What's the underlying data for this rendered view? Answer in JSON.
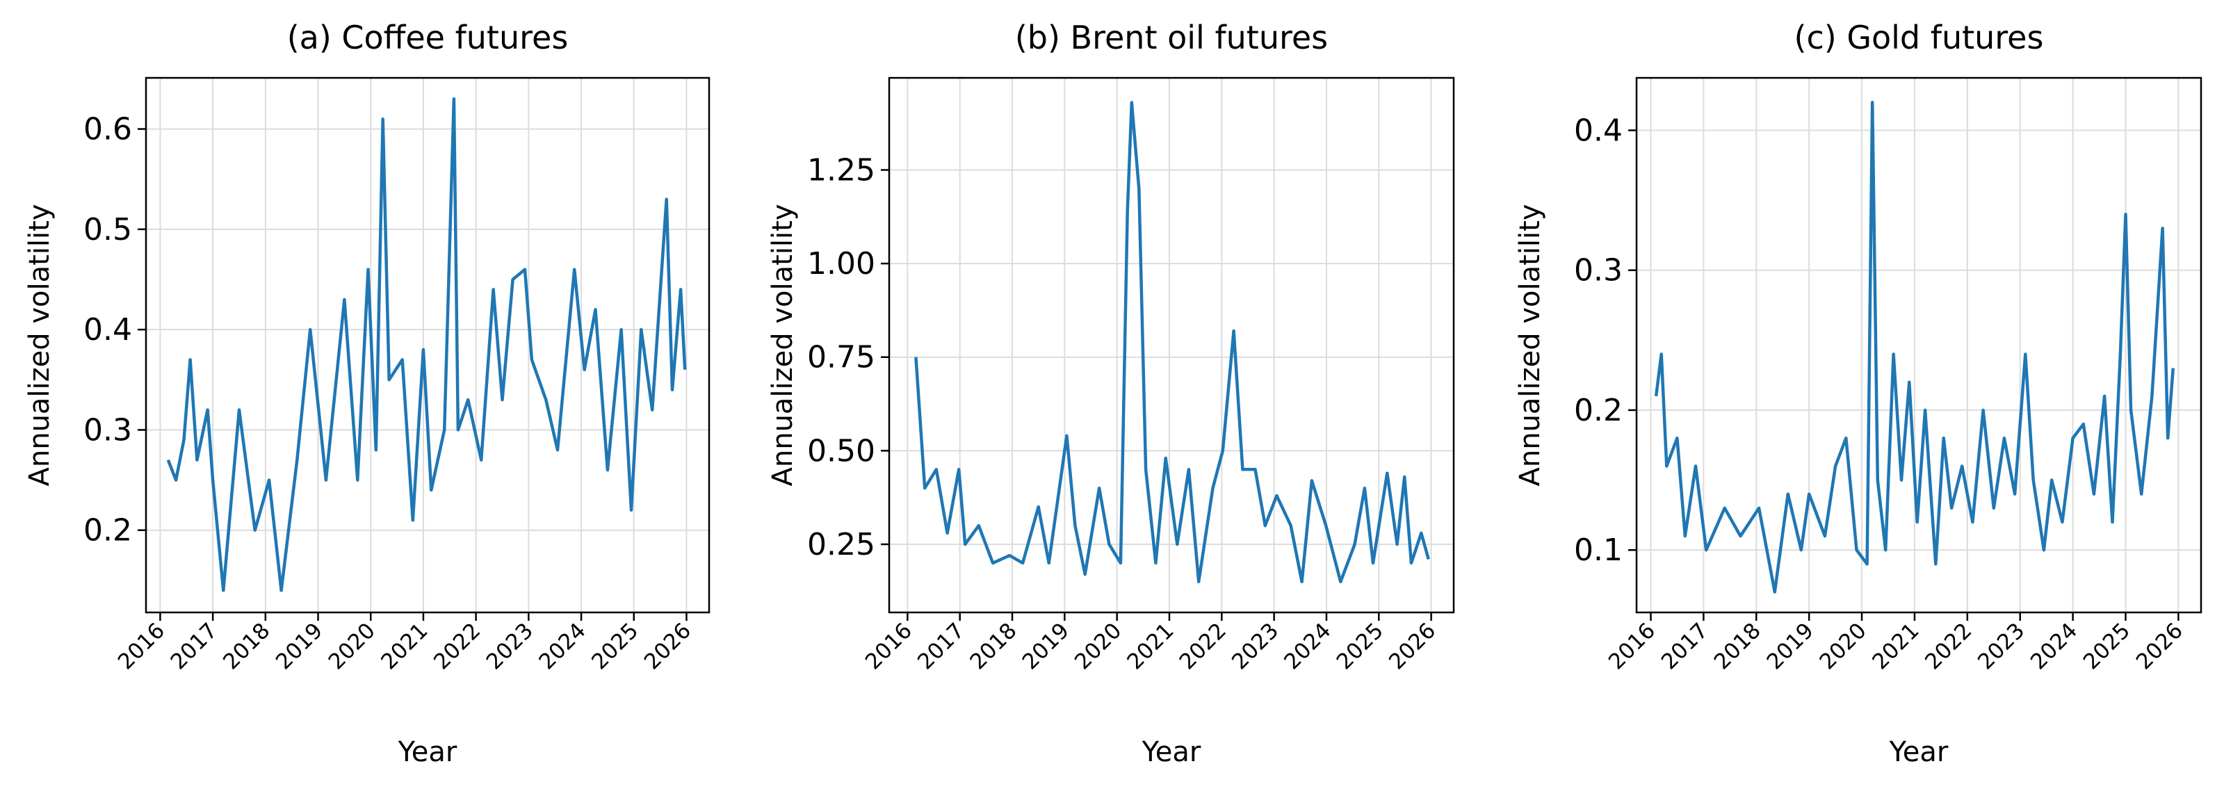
{
  "chart_data": [
    {
      "type": "line",
      "title": "(a) Coffee futures",
      "xlabel": "Year",
      "ylabel": "Annualized volatility",
      "color": "#1f77b4",
      "grid": true,
      "x": [
        2016.15,
        2016.3,
        2016.45,
        2016.57,
        2016.7,
        2016.9,
        2017.0,
        2017.2,
        2017.5,
        2017.8,
        2018.07,
        2018.3,
        2018.6,
        2018.85,
        2019.15,
        2019.5,
        2019.75,
        2019.95,
        2020.1,
        2020.23,
        2020.35,
        2020.6,
        2020.8,
        2021.0,
        2021.15,
        2021.4,
        2021.58,
        2021.66,
        2021.85,
        2022.1,
        2022.33,
        2022.5,
        2022.7,
        2022.93,
        2023.06,
        2023.33,
        2023.55,
        2023.87,
        2024.06,
        2024.27,
        2024.5,
        2024.76,
        2024.95,
        2025.14,
        2025.35,
        2025.62,
        2025.73,
        2025.89,
        2025.97
      ],
      "values": [
        0.27,
        0.25,
        0.29,
        0.37,
        0.27,
        0.32,
        0.25,
        0.14,
        0.32,
        0.2,
        0.25,
        0.14,
        0.27,
        0.4,
        0.25,
        0.43,
        0.25,
        0.46,
        0.28,
        0.61,
        0.35,
        0.37,
        0.21,
        0.38,
        0.24,
        0.3,
        0.63,
        0.3,
        0.33,
        0.27,
        0.44,
        0.33,
        0.45,
        0.46,
        0.37,
        0.33,
        0.28,
        0.46,
        0.36,
        0.42,
        0.26,
        0.4,
        0.22,
        0.4,
        0.32,
        0.53,
        0.34,
        0.44,
        0.36
      ],
      "xlim": [
        2015.73,
        2026.43
      ],
      "xticks": [
        2016,
        2017,
        2018,
        2019,
        2020,
        2021,
        2022,
        2023,
        2024,
        2025,
        2026
      ],
      "ylim": [
        0.118,
        0.651
      ],
      "yticks": [
        0.2,
        0.3,
        0.4,
        0.5,
        0.6
      ]
    },
    {
      "type": "line",
      "title": "(b) Brent oil futures",
      "xlabel": "Year",
      "ylabel": "Annualized volatility",
      "color": "#1f77b4",
      "grid": true,
      "x": [
        2016.16,
        2016.33,
        2016.55,
        2016.76,
        2016.98,
        2017.1,
        2017.36,
        2017.63,
        2017.95,
        2018.2,
        2018.5,
        2018.7,
        2019.04,
        2019.2,
        2019.39,
        2019.66,
        2019.85,
        2020.07,
        2020.2,
        2020.28,
        2020.42,
        2020.55,
        2020.74,
        2020.93,
        2021.15,
        2021.37,
        2021.56,
        2021.83,
        2022.02,
        2022.23,
        2022.4,
        2022.64,
        2022.83,
        2023.05,
        2023.32,
        2023.53,
        2023.72,
        2023.99,
        2024.27,
        2024.54,
        2024.73,
        2024.89,
        2025.16,
        2025.35,
        2025.49,
        2025.62,
        2025.81,
        2025.95
      ],
      "values": [
        0.75,
        0.4,
        0.45,
        0.28,
        0.45,
        0.25,
        0.3,
        0.2,
        0.22,
        0.2,
        0.35,
        0.2,
        0.54,
        0.3,
        0.17,
        0.4,
        0.25,
        0.2,
        1.14,
        1.43,
        1.2,
        0.45,
        0.2,
        0.48,
        0.25,
        0.45,
        0.15,
        0.4,
        0.5,
        0.82,
        0.45,
        0.45,
        0.3,
        0.38,
        0.3,
        0.15,
        0.42,
        0.3,
        0.15,
        0.25,
        0.4,
        0.2,
        0.44,
        0.25,
        0.43,
        0.2,
        0.28,
        0.21
      ],
      "xlim": [
        2015.65,
        2026.43
      ],
      "xticks": [
        2016,
        2017,
        2018,
        2019,
        2020,
        2021,
        2022,
        2023,
        2024,
        2025,
        2026
      ],
      "ylim": [
        0.068,
        1.496
      ],
      "yticks": [
        {
          "value": 0.25,
          "label": "0.25"
        },
        {
          "value": 0.5,
          "label": "0.50"
        },
        {
          "value": 0.75,
          "label": "0.75"
        },
        {
          "value": 1,
          "label": "1.00"
        },
        {
          "value": 1.25,
          "label": "1.25"
        }
      ]
    },
    {
      "type": "line",
      "title": "(c) Gold futures",
      "xlabel": "Year",
      "ylabel": "Annualized volatility",
      "color": "#1f77b4",
      "grid": true,
      "x": [
        2016.1,
        2016.2,
        2016.3,
        2016.5,
        2016.65,
        2016.85,
        2017.05,
        2017.4,
        2017.7,
        2018.05,
        2018.35,
        2018.6,
        2018.85,
        2019.0,
        2019.3,
        2019.5,
        2019.7,
        2019.9,
        2020.1,
        2020.2,
        2020.3,
        2020.45,
        2020.6,
        2020.75,
        2020.9,
        2021.05,
        2021.2,
        2021.4,
        2021.55,
        2021.7,
        2021.9,
        2022.1,
        2022.3,
        2022.5,
        2022.7,
        2022.9,
        2023.1,
        2023.25,
        2023.45,
        2023.6,
        2023.8,
        2024.0,
        2024.2,
        2024.4,
        2024.6,
        2024.75,
        2024.9,
        2025.0,
        2025.1,
        2025.3,
        2025.5,
        2025.7,
        2025.8,
        2025.9
      ],
      "values": [
        0.21,
        0.24,
        0.16,
        0.18,
        0.11,
        0.16,
        0.1,
        0.13,
        0.11,
        0.13,
        0.07,
        0.14,
        0.1,
        0.14,
        0.11,
        0.16,
        0.18,
        0.1,
        0.09,
        0.42,
        0.15,
        0.1,
        0.24,
        0.15,
        0.22,
        0.12,
        0.2,
        0.09,
        0.18,
        0.13,
        0.16,
        0.12,
        0.2,
        0.13,
        0.18,
        0.14,
        0.24,
        0.15,
        0.1,
        0.15,
        0.12,
        0.18,
        0.19,
        0.14,
        0.21,
        0.12,
        0.24,
        0.34,
        0.2,
        0.14,
        0.21,
        0.33,
        0.18,
        0.23
      ],
      "xlim": [
        2015.73,
        2026.43
      ],
      "xticks": [
        2016,
        2017,
        2018,
        2019,
        2020,
        2021,
        2022,
        2023,
        2024,
        2025,
        2026
      ],
      "ylim": [
        0.0554,
        0.4375
      ],
      "yticks": [
        0.1,
        0.2,
        0.3,
        0.4
      ]
    }
  ]
}
